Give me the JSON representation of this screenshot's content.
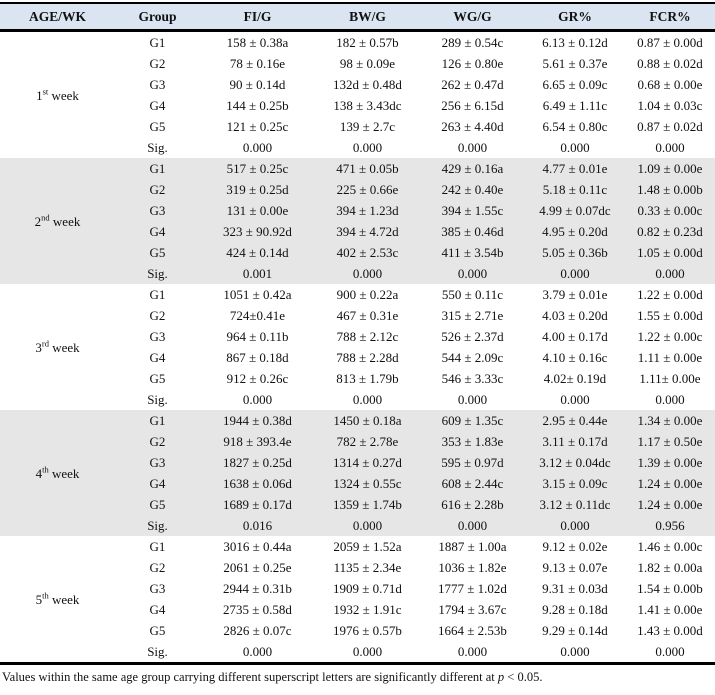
{
  "colors": {
    "header_bg": "#dbe5f1",
    "band_gray": "#e6e6e6",
    "border": "#000000"
  },
  "header": {
    "columns": [
      "AGE/WK",
      "Group",
      "FI/G",
      "BW/G",
      "WG/G",
      "GR%",
      "FCR%"
    ]
  },
  "weeks": [
    {
      "label_num": "1",
      "label_ord": "st",
      "label_word": "week",
      "rows": [
        {
          "group": "G1",
          "values": [
            "158 ± 0.38a",
            "182 ± 0.57b",
            "289 ± 0.54c",
            "6.13 ± 0.12d",
            "0.87 ± 0.00d"
          ]
        },
        {
          "group": "G2",
          "values": [
            "78 ± 0.16e",
            "98 ± 0.09e",
            "126 ± 0.80e",
            "5.61 ± 0.37e",
            "0.88 ± 0.02d"
          ]
        },
        {
          "group": "G3",
          "values": [
            "90 ± 0.14d",
            "132d ± 0.48d",
            "262 ± 0.47d",
            "6.65 ± 0.09c",
            "0.68 ± 0.00e"
          ]
        },
        {
          "group": "G4",
          "values": [
            "144 ± 0.25b",
            "138 ± 3.43dc",
            "256 ± 6.15d",
            "6.49 ± 1.11c",
            "1.04 ± 0.03c"
          ]
        },
        {
          "group": "G5",
          "values": [
            "121 ± 0.25c",
            "139 ± 2.7c",
            "263 ± 4.40d",
            "6.54 ± 0.80c",
            "0.87 ± 0.02d"
          ]
        },
        {
          "group": "Sig.",
          "values": [
            "0.000",
            "0.000",
            "0.000",
            "0.000",
            "0.000"
          ]
        }
      ]
    },
    {
      "label_num": "2",
      "label_ord": "nd",
      "label_word": "week",
      "rows": [
        {
          "group": "G1",
          "values": [
            "517 ± 0.25c",
            "471 ± 0.05b",
            "429 ± 0.16a",
            "4.77 ± 0.01e",
            "1.09 ± 0.00e"
          ]
        },
        {
          "group": "G2",
          "values": [
            "319 ± 0.25d",
            "225 ± 0.66e",
            "242 ± 0.40e",
            "5.18 ± 0.11c",
            "1.48 ± 0.00b"
          ]
        },
        {
          "group": "G3",
          "values": [
            "131 ± 0.00e",
            "394 ± 1.23d",
            "394 ± 1.55c",
            "4.99 ± 0.07dc",
            "0.33 ± 0.00c"
          ]
        },
        {
          "group": "G4",
          "values": [
            "323 ± 90.92d",
            "394 ± 4.72d",
            "385 ± 0.46d",
            "4.95 ± 0.20d",
            "0.82 ± 0.23d"
          ]
        },
        {
          "group": "G5",
          "values": [
            "424 ± 0.14d",
            "402 ± 2.53c",
            "411 ± 3.54b",
            "5.05 ± 0.36b",
            "1.05 ± 0.00d"
          ]
        },
        {
          "group": "Sig.",
          "values": [
            "0.001",
            "0.000",
            "0.000",
            "0.000",
            "0.000"
          ]
        }
      ]
    },
    {
      "label_num": "3",
      "label_ord": "rd",
      "label_word": "week",
      "rows": [
        {
          "group": "G1",
          "values": [
            "1051 ± 0.42a",
            "900 ± 0.22a",
            "550 ± 0.11c",
            "3.79 ± 0.01e",
            "1.22 ± 0.00d"
          ]
        },
        {
          "group": "G2",
          "values": [
            "724±0.41e",
            "467 ± 0.31e",
            "315 ± 2.71e",
            "4.03 ± 0.20d",
            "1.55 ± 0.00d"
          ]
        },
        {
          "group": "G3",
          "values": [
            "964 ± 0.11b",
            "788 ± 2.12c",
            "526 ± 2.37d",
            "4.00 ± 0.17d",
            "1.22 ± 0.00c"
          ]
        },
        {
          "group": "G4",
          "values": [
            "867 ± 0.18d",
            "788 ± 2.28d",
            "544 ± 2.09c",
            "4.10 ± 0.16c",
            "1.11 ± 0.00e"
          ]
        },
        {
          "group": "G5",
          "values": [
            "912 ± 0.26c",
            "813 ± 1.79b",
            "546 ± 3.33c",
            "4.02± 0.19d",
            "1.11± 0.00e"
          ]
        },
        {
          "group": "Sig.",
          "values": [
            "0.000",
            "0.000",
            "0.000",
            "0.000",
            "0.000"
          ]
        }
      ]
    },
    {
      "label_num": "4",
      "label_ord": "th",
      "label_word": "week",
      "rows": [
        {
          "group": "G1",
          "values": [
            "1944 ± 0.38d",
            "1450 ± 0.18a",
            "609 ± 1.35c",
            "2.95 ± 0.44e",
            "1.34 ± 0.00e"
          ]
        },
        {
          "group": "G2",
          "values": [
            "918 ± 393.4e",
            "782 ± 2.78e",
            "353 ± 1.83e",
            "3.11 ± 0.17d",
            "1.17 ± 0.50e"
          ]
        },
        {
          "group": "G3",
          "values": [
            "1827 ± 0.25d",
            "1314 ± 0.27d",
            "595 ± 0.97d",
            "3.12 ± 0.04dc",
            "1.39 ± 0.00e"
          ]
        },
        {
          "group": "G4",
          "values": [
            "1638 ± 0.06d",
            "1324 ± 0.55c",
            "608 ± 2.44c",
            "3.15 ± 0.09c",
            "1.24 ± 0.00e"
          ]
        },
        {
          "group": "G5",
          "values": [
            "1689 ± 0.17d",
            "1359 ± 1.74b",
            "616 ± 2.28b",
            "3.12 ± 0.11dc",
            "1.24 ± 0.00e"
          ]
        },
        {
          "group": "Sig.",
          "values": [
            "0.016",
            "0.000",
            "0.000",
            "0.000",
            "0.956"
          ]
        }
      ]
    },
    {
      "label_num": "5",
      "label_ord": "th",
      "label_word": "week",
      "rows": [
        {
          "group": "G1",
          "values": [
            "3016 ± 0.44a",
            "2059 ± 1.52a",
            "1887 ± 1.00a",
            "9.12 ± 0.02e",
            "1.46 ± 0.00c"
          ]
        },
        {
          "group": "G2",
          "values": [
            "2061 ± 0.25e",
            "1135 ± 2.34e",
            "1036 ± 1.82e",
            "9.13 ± 0.07e",
            "1.82 ± 0.00a"
          ]
        },
        {
          "group": "G3",
          "values": [
            "2944 ± 0.31b",
            "1909 ± 0.71d",
            "1777 ± 1.02d",
            "9.31 ± 0.03d",
            "1.54 ± 0.00b"
          ]
        },
        {
          "group": "G4",
          "values": [
            "2735 ± 0.58d",
            "1932 ± 1.91c",
            "1794 ± 3.67c",
            "9.28 ± 0.18d",
            "1.41 ± 0.00e"
          ]
        },
        {
          "group": "G5",
          "values": [
            "2826 ± 0.07c",
            "1976 ± 0.57b",
            "1664 ± 2.53b",
            "9.29 ± 0.14d",
            "1.43 ± 0.00d"
          ]
        },
        {
          "group": "Sig.",
          "values": [
            "0.000",
            "0.000",
            "0.000",
            "0.000",
            "0.000"
          ]
        }
      ]
    }
  ],
  "footnote": {
    "prefix": "Values within the same age group carrying different superscript letters are significantly different at ",
    "p_symbol": "p",
    "suffix": " < 0.05."
  }
}
